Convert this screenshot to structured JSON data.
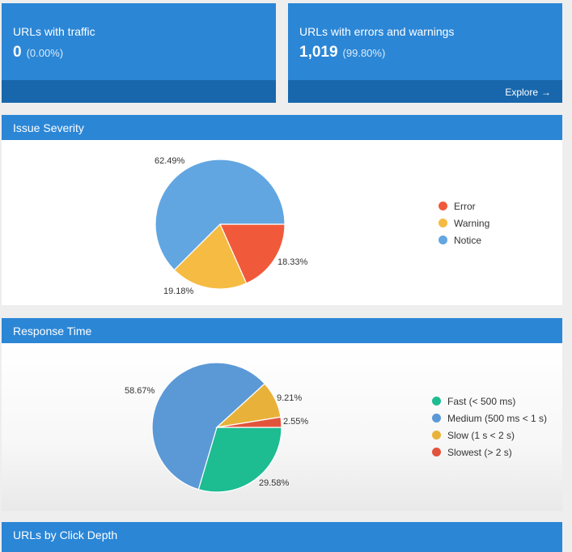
{
  "cards": {
    "traffic": {
      "title": "URLs with traffic",
      "value": "0",
      "percent": "(0.00%)"
    },
    "errors": {
      "title": "URLs with errors and warnings",
      "value": "1,019",
      "percent": "(99.80%)",
      "explore_label": "Explore",
      "explore_arrow": "→"
    }
  },
  "sections": {
    "issue_severity": "Issue Severity",
    "response_time": "Response Time",
    "click_depth": "URLs by Click Depth"
  },
  "chart_data": [
    {
      "type": "pie",
      "title": "Issue Severity",
      "categories": [
        "Error",
        "Warning",
        "Notice"
      ],
      "values": [
        18.33,
        19.18,
        62.49
      ],
      "labels": [
        "18.33%",
        "19.18%",
        "62.49%"
      ],
      "colors": [
        "#f05a3a",
        "#f6bb42",
        "#62a6e1"
      ],
      "legend": "right"
    },
    {
      "type": "pie",
      "title": "Response Time",
      "categories": [
        "Fast (< 500 ms)",
        "Medium (500 ms < 1 s)",
        "Slow (1 s < 2 s)",
        "Slowest (> 2 s)"
      ],
      "values": [
        29.58,
        58.67,
        9.21,
        2.55
      ],
      "labels": [
        "29.58%",
        "58.67%",
        "9.21%",
        "2.55%"
      ],
      "colors": [
        "#1dbc91",
        "#5b99d6",
        "#e8b23a",
        "#e2533c"
      ],
      "legend": "right"
    }
  ]
}
